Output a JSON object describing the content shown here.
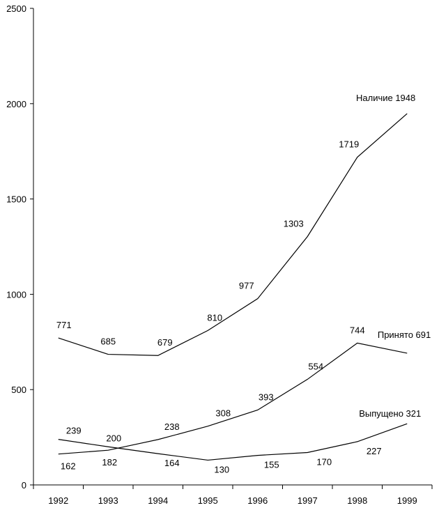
{
  "chart_data": {
    "type": "line",
    "categories": [
      "1992",
      "1993",
      "1994",
      "1995",
      "1996",
      "1997",
      "1998",
      "1999"
    ],
    "ylim": [
      0,
      2500
    ],
    "yticks": [
      0,
      500,
      1000,
      1500,
      2000,
      2500
    ],
    "grid": false,
    "legend": "none",
    "series": [
      {
        "name": "Наличие 1948",
        "values": [
          771,
          685,
          679,
          810,
          977,
          1303,
          1719,
          1948
        ],
        "labels": [
          "771",
          "685",
          "679",
          "810",
          "977",
          "1303",
          "1719",
          ""
        ]
      },
      {
        "name": "Принято 691",
        "values": [
          162,
          182,
          238,
          308,
          393,
          554,
          744,
          691
        ],
        "labels": [
          "162",
          "182",
          "238",
          "308",
          "393",
          "554",
          "744",
          ""
        ]
      },
      {
        "name": "Выпущено 321",
        "values": [
          239,
          200,
          164,
          130,
          155,
          170,
          227,
          321
        ],
        "labels": [
          "239",
          "200",
          "164",
          "130",
          "155",
          "170",
          "227",
          ""
        ]
      }
    ]
  }
}
